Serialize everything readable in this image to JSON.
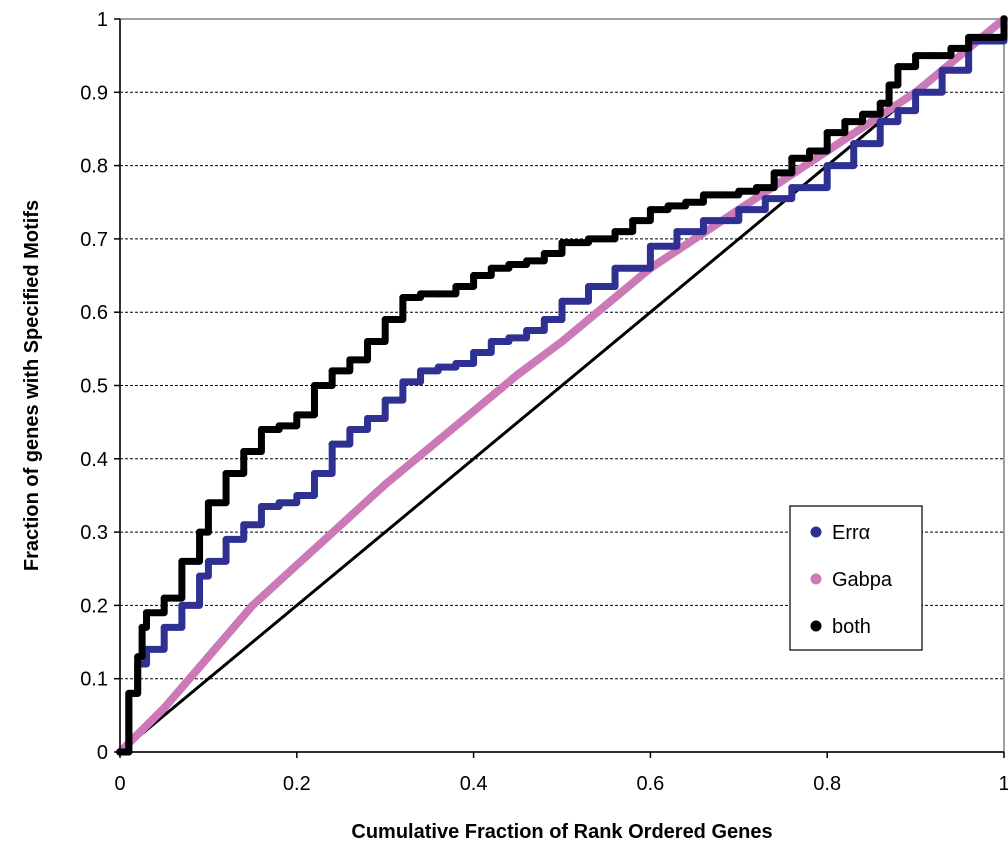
{
  "chart_data": {
    "type": "line",
    "title": "",
    "xlabel": "Cumulative Fraction of Rank Ordered Genes",
    "ylabel": "Fraction of genes with Specified Motifs",
    "xlim": [
      0,
      1
    ],
    "ylim": [
      0,
      1
    ],
    "x_ticks": [
      "0",
      "0.2",
      "0.4",
      "0.6",
      "0.8",
      "1"
    ],
    "y_ticks": [
      "0",
      "0.1",
      "0.2",
      "0.3",
      "0.4",
      "0.5",
      "0.6",
      "0.7",
      "0.8",
      "0.9",
      "1"
    ],
    "grid": "horizontal dashed",
    "legend_position": "lower-right",
    "series": [
      {
        "name": "Errα",
        "color": "#2e3192",
        "x": [
          0,
          0.01,
          0.02,
          0.03,
          0.05,
          0.07,
          0.09,
          0.1,
          0.12,
          0.14,
          0.16,
          0.18,
          0.2,
          0.22,
          0.24,
          0.26,
          0.28,
          0.3,
          0.32,
          0.34,
          0.36,
          0.38,
          0.4,
          0.42,
          0.44,
          0.46,
          0.48,
          0.5,
          0.53,
          0.56,
          0.6,
          0.63,
          0.66,
          0.7,
          0.73,
          0.76,
          0.8,
          0.83,
          0.86,
          0.88,
          0.9,
          0.93,
          0.96,
          1.0
        ],
        "y": [
          0,
          0.08,
          0.12,
          0.14,
          0.17,
          0.2,
          0.24,
          0.26,
          0.29,
          0.31,
          0.335,
          0.34,
          0.35,
          0.38,
          0.42,
          0.44,
          0.455,
          0.48,
          0.505,
          0.52,
          0.525,
          0.53,
          0.545,
          0.56,
          0.565,
          0.575,
          0.59,
          0.615,
          0.635,
          0.66,
          0.69,
          0.71,
          0.725,
          0.74,
          0.755,
          0.77,
          0.8,
          0.83,
          0.86,
          0.875,
          0.9,
          0.93,
          0.97,
          1.0
        ]
      },
      {
        "name": "Gabpa",
        "color": "#cc79b8",
        "x": [
          0,
          0.05,
          0.1,
          0.15,
          0.2,
          0.25,
          0.3,
          0.35,
          0.4,
          0.45,
          0.5,
          0.55,
          0.6,
          0.65,
          0.7,
          0.75,
          0.8,
          0.85,
          0.9,
          0.95,
          1.0
        ],
        "y": [
          0,
          0.06,
          0.13,
          0.2,
          0.255,
          0.31,
          0.365,
          0.415,
          0.465,
          0.515,
          0.56,
          0.61,
          0.66,
          0.7,
          0.74,
          0.78,
          0.82,
          0.86,
          0.9,
          0.95,
          1.0
        ]
      },
      {
        "name": "both",
        "color": "#000000",
        "x": [
          0,
          0.01,
          0.02,
          0.025,
          0.03,
          0.05,
          0.07,
          0.09,
          0.1,
          0.12,
          0.14,
          0.16,
          0.18,
          0.2,
          0.22,
          0.24,
          0.26,
          0.28,
          0.3,
          0.32,
          0.34,
          0.36,
          0.38,
          0.4,
          0.42,
          0.44,
          0.46,
          0.48,
          0.5,
          0.53,
          0.56,
          0.58,
          0.6,
          0.62,
          0.64,
          0.66,
          0.68,
          0.7,
          0.72,
          0.74,
          0.76,
          0.78,
          0.8,
          0.82,
          0.84,
          0.86,
          0.87,
          0.88,
          0.9,
          0.92,
          0.94,
          0.96,
          1.0
        ],
        "y": [
          0,
          0.08,
          0.13,
          0.17,
          0.19,
          0.21,
          0.26,
          0.3,
          0.34,
          0.38,
          0.41,
          0.44,
          0.445,
          0.46,
          0.5,
          0.52,
          0.535,
          0.56,
          0.59,
          0.62,
          0.625,
          0.625,
          0.635,
          0.65,
          0.66,
          0.665,
          0.67,
          0.68,
          0.695,
          0.7,
          0.71,
          0.725,
          0.74,
          0.745,
          0.75,
          0.76,
          0.76,
          0.765,
          0.77,
          0.79,
          0.81,
          0.82,
          0.845,
          0.86,
          0.87,
          0.885,
          0.91,
          0.935,
          0.95,
          0.95,
          0.96,
          0.975,
          1.0
        ]
      },
      {
        "name": "",
        "color": "#000000",
        "x": [
          0,
          1
        ],
        "y": [
          0,
          1
        ]
      }
    ]
  }
}
